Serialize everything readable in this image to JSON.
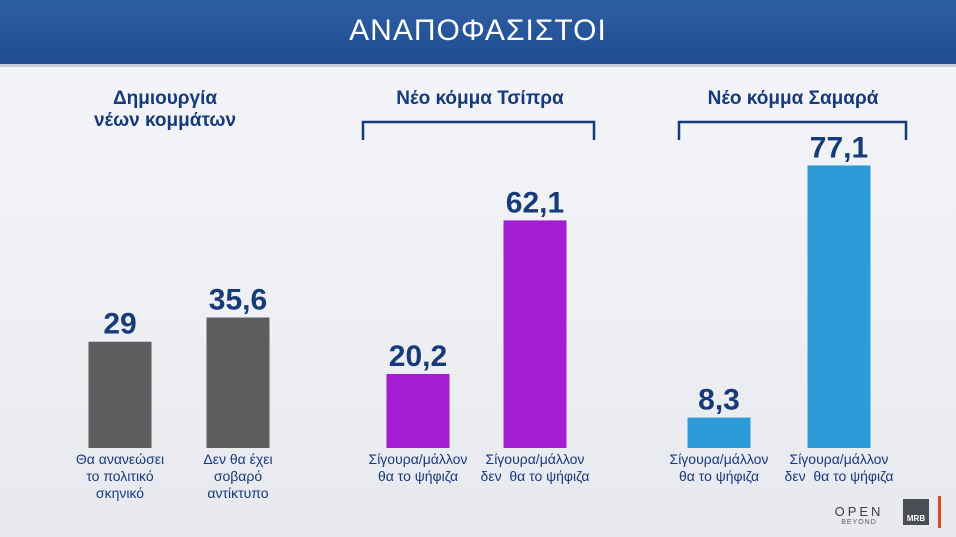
{
  "header": {
    "title": "ΑΝΑΠΟΦΑΣΙΣΤΟΙ"
  },
  "groups": [
    {
      "title_line1": "Δημιουργία",
      "title_line2": "νέων κομμάτων"
    },
    {
      "title_line1": "Νέο κόμμα Τσίπρα"
    },
    {
      "title_line1": "Νέο κόμμα Σαμαρά"
    }
  ],
  "chart_data": {
    "type": "bar",
    "title": "ΑΝΑΠΟΦΑΣΙΣΤΟΙ",
    "ylim": [
      0,
      100
    ],
    "grid": false,
    "bars": [
      {
        "group": "Δημιουργία νέων κομμάτων",
        "label_lines": [
          "Θα ανανεώσει",
          "το πολιτικό",
          "σκηνικό"
        ],
        "value": 29,
        "display": "29",
        "color": "#5e5e5e"
      },
      {
        "group": "Δημιουργία νέων κομμάτων",
        "label_lines": [
          "Δεν θα έχει",
          "σοβαρό",
          "αντίκτυπο"
        ],
        "value": 35.6,
        "display": "35,6",
        "color": "#5e5e5e"
      },
      {
        "group": "Νέο κόμμα Τσίπρα",
        "label_lines": [
          "Σίγουρα/μάλλον",
          "θα το ψήφιζα"
        ],
        "value": 20.2,
        "display": "20,2",
        "color": "#a21ed0"
      },
      {
        "group": "Νέο κόμμα Τσίπρα",
        "label_lines": [
          "Σίγουρα/μάλλον",
          "δεν  θα το ψήφιζα"
        ],
        "value": 62.1,
        "display": "62,1",
        "color": "#a21ed0"
      },
      {
        "group": "Νέο κόμμα Σαμαρά",
        "label_lines": [
          "Σίγουρα/μάλλον",
          "θα το ψήφιζα"
        ],
        "value": 8.3,
        "display": "8,3",
        "color": "#2d9bd8"
      },
      {
        "group": "Νέο κόμμα Σαμαρά",
        "label_lines": [
          "Σίγουρα/μάλλον",
          "δεν  θα το ψήφιζα"
        ],
        "value": 77.1,
        "display": "77,1",
        "color": "#2d9bd8"
      }
    ]
  },
  "logos": {
    "open": "OPEN",
    "open_sub": "BEYOND",
    "mrb": "MRB"
  },
  "colors": {
    "header": "#2a5aa0",
    "value_text": "#163a7a",
    "bracket": "#163a7a"
  }
}
